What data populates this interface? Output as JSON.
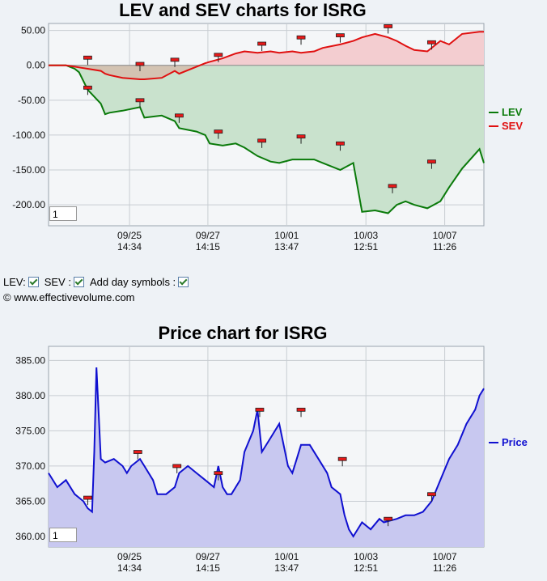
{
  "top_chart": {
    "title": "LEV and SEV charts for ISRG",
    "zoom_value": "1"
  },
  "bottom_chart": {
    "title": "Price chart for ISRG",
    "zoom_value": "1"
  },
  "controls": {
    "lev_label": "LEV:",
    "sev_label": "SEV :",
    "symbols_label": "Add day symbols :",
    "lev_checked": true,
    "sev_checked": true,
    "symbols_checked": true
  },
  "copyright": "© www.effectivevolume.com",
  "colors": {
    "lev": "#0a7a0a",
    "sev": "#e01010",
    "price": "#1010d0",
    "lev_fill": "#c9e2cd",
    "sev_fill": "#f3cdd0",
    "overlap_fill": "#d3c3b2",
    "price_fill": "#c8c8f0"
  },
  "chart_data": [
    {
      "type": "area",
      "title": "LEV and SEV charts for ISRG",
      "x_ticks": [
        {
          "top": "09/25",
          "bottom": "14:34"
        },
        {
          "top": "09/27",
          "bottom": "14:15"
        },
        {
          "top": "10/01",
          "bottom": "13:47"
        },
        {
          "top": "10/03",
          "bottom": "12:51"
        },
        {
          "top": "10/07",
          "bottom": "11:26"
        }
      ],
      "y_ticks": [
        "50.00",
        "0.00",
        "-50.00",
        "-100.00",
        "-150.00",
        "-200.00"
      ],
      "ylim": [
        -230,
        60
      ],
      "legend": [
        "LEV",
        "SEV"
      ],
      "legend_position": "right",
      "grid": true,
      "x": [
        0,
        4,
        6,
        7,
        9,
        12,
        13,
        14,
        17,
        21,
        22,
        26,
        29,
        30,
        34,
        36,
        37,
        40,
        43,
        45,
        48,
        51,
        53,
        56,
        58,
        61,
        63,
        67,
        70,
        72,
        75,
        78,
        80,
        82,
        84,
        87,
        90,
        92,
        95,
        99,
        100
      ],
      "series": [
        {
          "name": "LEV",
          "values": [
            0,
            0,
            -5,
            -10,
            -35,
            -55,
            -70,
            -68,
            -65,
            -60,
            -75,
            -72,
            -80,
            -90,
            -95,
            -100,
            -112,
            -115,
            -112,
            -118,
            -130,
            -138,
            -140,
            -135,
            -135,
            -135,
            -140,
            -150,
            -140,
            -210,
            -208,
            -212,
            -200,
            -195,
            -200,
            -205,
            -195,
            -175,
            -148,
            -120,
            -140
          ]
        },
        {
          "name": "SEV",
          "values": [
            0,
            0,
            -2,
            -3,
            -5,
            -8,
            -12,
            -14,
            -18,
            -20,
            -20,
            -18,
            -8,
            -12,
            -2,
            3,
            5,
            10,
            17,
            20,
            18,
            20,
            18,
            20,
            18,
            20,
            25,
            30,
            35,
            40,
            45,
            40,
            35,
            28,
            22,
            20,
            35,
            30,
            45,
            48,
            48
          ]
        }
      ],
      "day_markers": {
        "lev": [
          {
            "x": 9,
            "y": -32
          },
          {
            "x": 21,
            "y": -50
          },
          {
            "x": 30,
            "y": -72
          },
          {
            "x": 39,
            "y": -95
          },
          {
            "x": 49,
            "y": -108
          },
          {
            "x": 58,
            "y": -102
          },
          {
            "x": 67,
            "y": -112
          },
          {
            "x": 79,
            "y": -173
          },
          {
            "x": 88,
            "y": -138
          }
        ],
        "sev": [
          {
            "x": 9,
            "y": 11
          },
          {
            "x": 21,
            "y": 2
          },
          {
            "x": 29,
            "y": 8
          },
          {
            "x": 39,
            "y": 15
          },
          {
            "x": 49,
            "y": 31
          },
          {
            "x": 58,
            "y": 40
          },
          {
            "x": 67,
            "y": 43
          },
          {
            "x": 78,
            "y": 56
          },
          {
            "x": 88,
            "y": 33
          }
        ]
      }
    },
    {
      "type": "area",
      "title": "Price chart for ISRG",
      "x_ticks": [
        {
          "top": "09/25",
          "bottom": "14:34"
        },
        {
          "top": "09/27",
          "bottom": "14:15"
        },
        {
          "top": "10/01",
          "bottom": "13:47"
        },
        {
          "top": "10/03",
          "bottom": "12:51"
        },
        {
          "top": "10/07",
          "bottom": "11:26"
        }
      ],
      "y_ticks": [
        "385.00",
        "380.00",
        "375.00",
        "370.00",
        "365.00",
        "360.00"
      ],
      "ylim": [
        358.5,
        387
      ],
      "legend": [
        "Price"
      ],
      "legend_position": "right",
      "grid": true,
      "x": [
        0,
        2,
        4,
        6,
        8,
        9,
        10,
        10.5,
        11,
        12,
        13,
        15,
        17,
        18,
        19,
        21,
        22,
        24,
        25,
        27,
        29,
        30,
        32,
        34,
        36,
        38,
        39,
        40,
        41,
        42,
        44,
        45,
        47,
        48,
        49,
        51,
        53,
        55,
        56,
        57,
        58,
        60,
        62,
        64,
        65,
        67,
        68,
        69,
        70,
        72,
        74,
        76,
        77,
        80,
        82,
        84,
        86,
        88,
        90,
        92,
        94,
        96,
        98,
        99,
        100
      ],
      "series": [
        {
          "name": "Price",
          "values": [
            369,
            367,
            368,
            366,
            365,
            364,
            363.5,
            372,
            384,
            371,
            370.5,
            371,
            370,
            369,
            370,
            371,
            370,
            368,
            366,
            366,
            367,
            369,
            370,
            369,
            368,
            367,
            370,
            367,
            366,
            366,
            368,
            372,
            375,
            378,
            372,
            374,
            376,
            370,
            369,
            371,
            373,
            373,
            371,
            369,
            367,
            366,
            363,
            361,
            360,
            362,
            361,
            362.5,
            362,
            362.5,
            363,
            363,
            363.5,
            365,
            368,
            371,
            373,
            376,
            378,
            380,
            381
          ]
        }
      ],
      "day_markers": {
        "price": [
          {
            "x": 9,
            "y": 365.5
          },
          {
            "x": 20.5,
            "y": 372
          },
          {
            "x": 29.5,
            "y": 370
          },
          {
            "x": 39,
            "y": 369
          },
          {
            "x": 48.5,
            "y": 378
          },
          {
            "x": 58,
            "y": 378
          },
          {
            "x": 67.5,
            "y": 371
          },
          {
            "x": 78,
            "y": 362.5
          },
          {
            "x": 88,
            "y": 366
          }
        ]
      }
    }
  ]
}
